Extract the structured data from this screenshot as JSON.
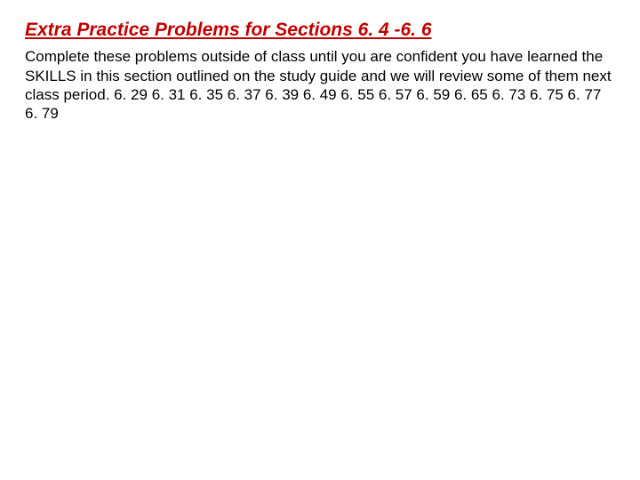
{
  "title": {
    "text": "Extra Practice Problems for Sections 6. 4 -6. 6",
    "color": "#c00000"
  },
  "body": {
    "text": "Complete these problems outside of class until you are confident you have learned the SKILLS in this section outlined on the study guide and we will review some of them next class period.  6. 29  6. 31  6. 35  6. 37  6. 39  6. 49  6. 55  6. 57  6. 59  6. 65  6. 73  6. 75  6. 77  6. 79",
    "color": "#000000"
  },
  "background_color": "#ffffff"
}
